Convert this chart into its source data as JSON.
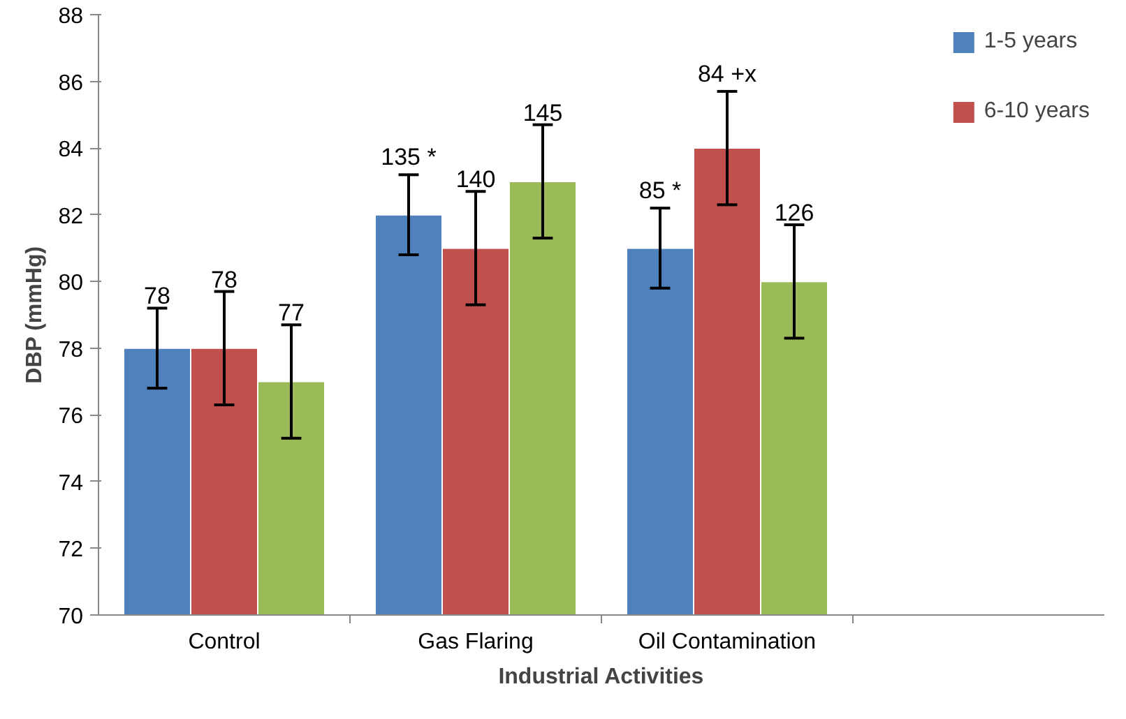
{
  "chart_data": {
    "type": "bar",
    "xlabel": "Industrial Activities",
    "ylabel": "DBP (mmHg)",
    "categories": [
      "Control",
      "Gas Flaring",
      "Oil Contamination",
      null
    ],
    "series": [
      {
        "name": "1-5 years",
        "color": "#4f81bd",
        "values": [
          78,
          82,
          81,
          null
        ],
        "errors": [
          1.2,
          1.2,
          1.2,
          null
        ]
      },
      {
        "name": "6-10 years",
        "color": "#c0504d",
        "values": [
          78,
          81,
          84,
          null
        ],
        "errors": [
          1.7,
          1.7,
          1.7,
          null
        ]
      },
      {
        "color": "#9bbb59",
        "values": [
          77,
          83,
          80,
          null
        ],
        "errors": [
          1.7,
          1.7,
          1.7,
          null
        ]
      }
    ],
    "annotations": [
      "78",
      "78",
      "77",
      "135 *",
      "140",
      "145",
      "85 *",
      "84 +x",
      "126"
    ],
    "ylim": [
      70,
      88
    ],
    "yticks": [
      70,
      72,
      74,
      76,
      78,
      80,
      82,
      84,
      86,
      88
    ],
    "grid": false,
    "legend": "top right"
  }
}
